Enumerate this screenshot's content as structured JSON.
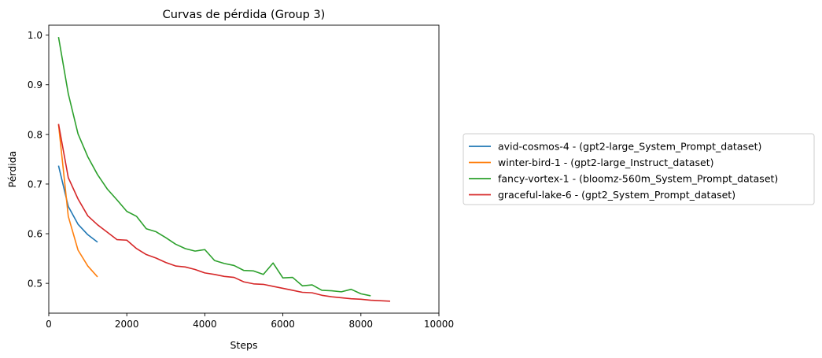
{
  "chart_data": {
    "type": "line",
    "title": "Curvas de pérdida (Group 3)",
    "xlabel": "Steps",
    "ylabel": "Pérdida",
    "xlim": [
      0,
      10000
    ],
    "ylim": [
      0.44,
      1.02
    ],
    "xticks": [
      "0",
      "2000",
      "4000",
      "6000",
      "8000",
      "10000"
    ],
    "yticks": [
      "0.5",
      "0.6",
      "0.7",
      "0.8",
      "0.9",
      "1.0"
    ],
    "grid": false,
    "legend_position": "outside-right",
    "series": [
      {
        "name": "avid-cosmos-4 - (gpt2-large_System_Prompt_dataset)",
        "color": "#1f77b4",
        "x": [
          250,
          500,
          750,
          1000,
          1250
        ],
        "y": [
          0.737,
          0.655,
          0.619,
          0.598,
          0.583
        ]
      },
      {
        "name": "winter-bird-1 - (gpt2-large_Instruct_dataset)",
        "color": "#ff7f0e",
        "x": [
          250,
          500,
          750,
          1000,
          1250
        ],
        "y": [
          0.82,
          0.635,
          0.567,
          0.535,
          0.513
        ]
      },
      {
        "name": "fancy-vortex-1 - (bloomz-560m_System_Prompt_dataset)",
        "color": "#2ca02c",
        "x": [
          250,
          500,
          750,
          1000,
          1250,
          1500,
          1750,
          2000,
          2250,
          2500,
          2750,
          3000,
          3250,
          3500,
          3750,
          4000,
          4250,
          4500,
          4750,
          5000,
          5250,
          5500,
          5750,
          6000,
          6250,
          6500,
          6750,
          7000,
          7250,
          7500,
          7750,
          8000,
          8250
        ],
        "y": [
          0.996,
          0.882,
          0.801,
          0.755,
          0.719,
          0.69,
          0.668,
          0.645,
          0.635,
          0.61,
          0.604,
          0.592,
          0.579,
          0.57,
          0.565,
          0.568,
          0.546,
          0.54,
          0.536,
          0.526,
          0.525,
          0.518,
          0.541,
          0.511,
          0.512,
          0.495,
          0.497,
          0.486,
          0.485,
          0.483,
          0.488,
          0.479,
          0.475
        ]
      },
      {
        "name": "graceful-lake-6 - (gpt2_System_Prompt_dataset)",
        "color": "#d62728",
        "x": [
          250,
          500,
          750,
          1000,
          1250,
          1500,
          1750,
          2000,
          2250,
          2500,
          2750,
          3000,
          3250,
          3500,
          3750,
          4000,
          4250,
          4500,
          4750,
          5000,
          5250,
          5500,
          5750,
          6000,
          6250,
          6500,
          6750,
          7000,
          7250,
          7500,
          7750,
          8000,
          8250,
          8500,
          8750
        ],
        "y": [
          0.821,
          0.713,
          0.67,
          0.636,
          0.618,
          0.603,
          0.588,
          0.587,
          0.57,
          0.558,
          0.551,
          0.542,
          0.535,
          0.533,
          0.528,
          0.521,
          0.518,
          0.514,
          0.512,
          0.503,
          0.499,
          0.498,
          0.494,
          0.49,
          0.486,
          0.482,
          0.481,
          0.476,
          0.473,
          0.471,
          0.469,
          0.468,
          0.466,
          0.465,
          0.464
        ]
      }
    ]
  }
}
